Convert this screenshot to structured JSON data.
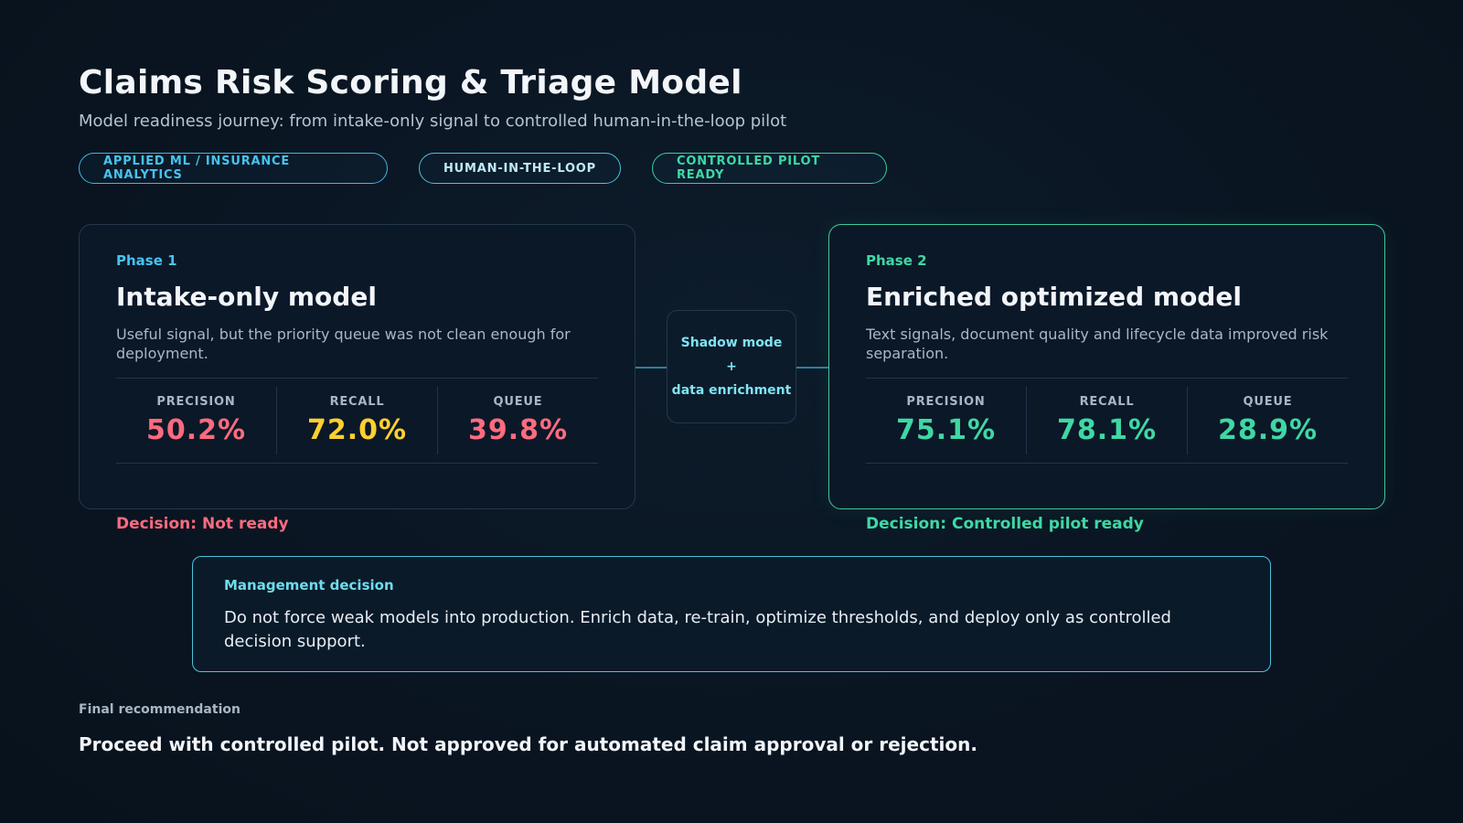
{
  "header": {
    "title": "Claims Risk Scoring & Triage Model",
    "subtitle": "Model readiness journey: from intake-only signal to controlled human-in-the-loop pilot"
  },
  "tags": [
    {
      "label": "APPLIED ML / INSURANCE ANALYTICS"
    },
    {
      "label": "HUMAN-IN-THE-LOOP"
    },
    {
      "label": "CONTROLLED PILOT READY"
    }
  ],
  "phase1": {
    "label": "Phase 1",
    "title": "Intake-only model",
    "description": "Useful signal, but the priority queue was not clean enough for deployment.",
    "metrics": [
      {
        "label": "PRECISION",
        "value": "50.2%"
      },
      {
        "label": "RECALL",
        "value": "72.0%"
      },
      {
        "label": "QUEUE",
        "value": "39.8%"
      }
    ],
    "decision": "Decision: Not ready"
  },
  "bridge": {
    "line1": "Shadow mode",
    "line2": "+",
    "line3": "data enrichment"
  },
  "phase2": {
    "label": "Phase 2",
    "title": "Enriched optimized model",
    "description": "Text signals, document quality and lifecycle data improved risk separation.",
    "metrics": [
      {
        "label": "PRECISION",
        "value": "75.1%"
      },
      {
        "label": "RECALL",
        "value": "78.1%"
      },
      {
        "label": "QUEUE",
        "value": "28.9%"
      }
    ],
    "decision": "Decision: Controlled pilot ready"
  },
  "management": {
    "label": "Management decision",
    "text": "Do not force weak models into production. Enrich data, re-train, optimize thresholds, and deploy only as controlled decision support."
  },
  "final": {
    "label": "Final recommendation",
    "text": "Proceed with controlled pilot. Not approved for automated claim approval or rejection."
  },
  "colors": {
    "background": "#0a1522",
    "accent_blue": "#46c3f0",
    "accent_green": "#3ed8a4",
    "warning_red": "#ff6b7f",
    "warning_yellow": "#ffd02e"
  }
}
